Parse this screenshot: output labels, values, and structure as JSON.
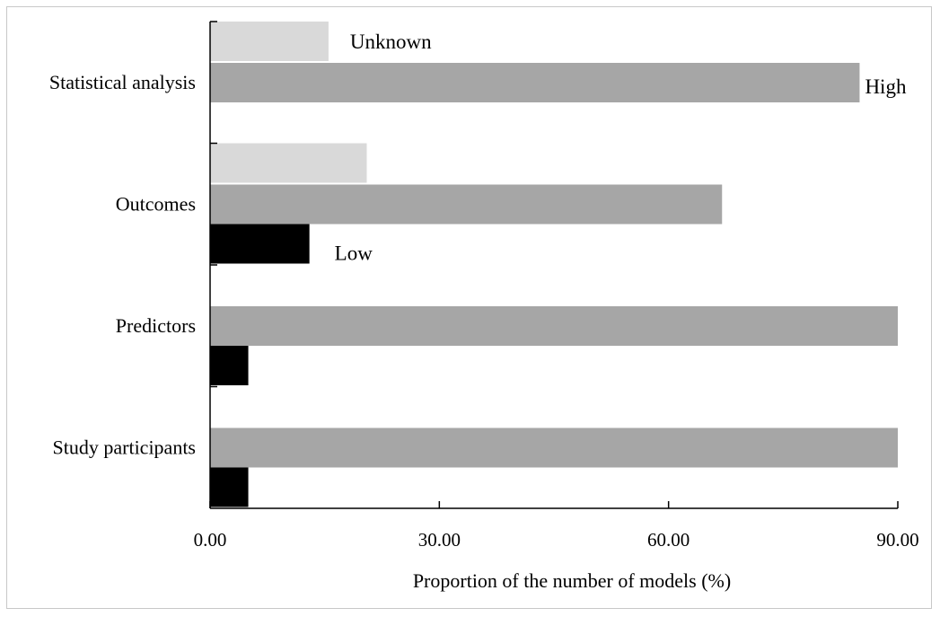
{
  "chart_data": {
    "type": "bar",
    "orientation": "horizontal",
    "categories": [
      "Study participants",
      "Predictors",
      "Outcomes",
      "Statistical analysis"
    ],
    "series": [
      {
        "name": "Low",
        "color": "#000000",
        "values": [
          5,
          5,
          13,
          0
        ]
      },
      {
        "name": "High",
        "color": "#a6a6a6",
        "values": [
          90,
          90,
          67,
          85
        ]
      },
      {
        "name": "Unknown",
        "color": "#d9d9d9",
        "values": [
          0,
          0,
          20.5,
          15.5
        ]
      }
    ],
    "xlabel": "Proportion of the number of models (%)",
    "ylabel": "",
    "xlim": [
      0,
      90
    ],
    "xticks": [
      "0.00",
      "30.00",
      "60.00",
      "90.00"
    ],
    "xtick_values": [
      0,
      30,
      60,
      90
    ],
    "grid": false,
    "legend": "inline labels next to bars"
  }
}
